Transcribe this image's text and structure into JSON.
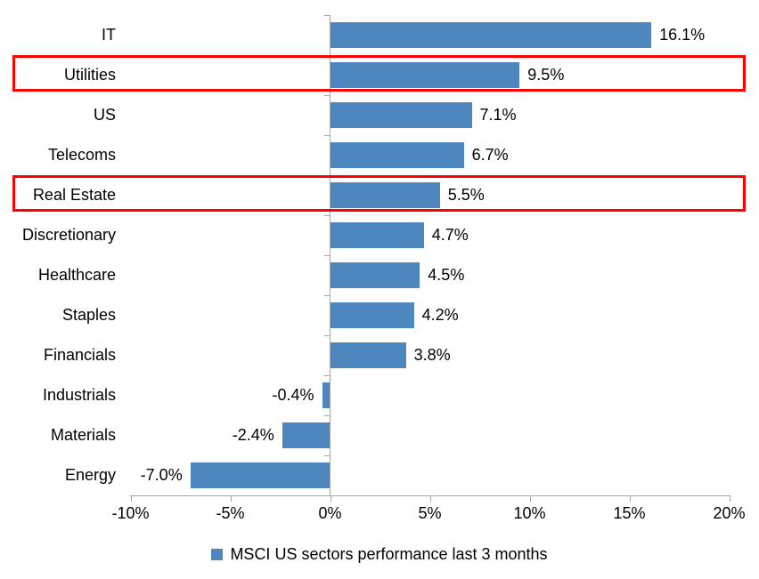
{
  "chart_data": {
    "type": "bar",
    "orientation": "horizontal",
    "title": "",
    "categories": [
      "IT",
      "Utilities",
      "US",
      "Telecoms",
      "Real Estate",
      "Discretionary",
      "Healthcare",
      "Staples",
      "Financials",
      "Industrials",
      "Materials",
      "Energy"
    ],
    "values": [
      16.1,
      9.5,
      7.1,
      6.7,
      5.5,
      4.7,
      4.5,
      4.2,
      3.8,
      -0.4,
      -2.4,
      -7.0
    ],
    "value_labels": [
      "16.1%",
      "9.5%",
      "7.1%",
      "6.7%",
      "5.5%",
      "4.7%",
      "4.5%",
      "4.2%",
      "3.8%",
      "-0.4%",
      "-2.4%",
      "-7.0%"
    ],
    "x_tick_labels": [
      "-10%",
      "-5%",
      "0%",
      "5%",
      "10%",
      "15%",
      "20%"
    ],
    "x_tick_values": [
      -10,
      -5,
      0,
      5,
      10,
      15,
      20
    ],
    "xlim": [
      -10,
      20
    ],
    "grid": false,
    "bar_color": "#4E86BE",
    "axis_color": "#A6A6A6",
    "text_color": "#000000",
    "legend": {
      "label": "MSCI US sectors performance last 3 months",
      "position": "bottom",
      "marker_color": "#4E86BE"
    },
    "highlight": {
      "categories": [
        "Utilities",
        "Real Estate"
      ],
      "box_color": "#FF0000"
    }
  }
}
